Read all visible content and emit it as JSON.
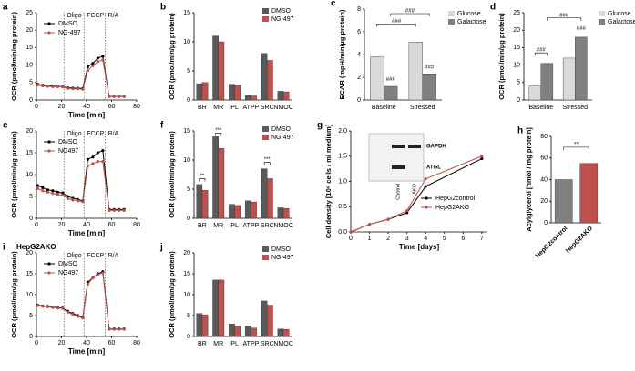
{
  "chart_data": [
    {
      "panel": "a",
      "type": "line",
      "xlabel": "Time [min]",
      "ylabel": "OCR (pmol/min/mg protein)",
      "x": [
        1,
        5,
        9,
        13,
        17,
        21,
        25,
        29,
        33,
        37,
        41,
        45,
        49,
        53,
        58,
        62,
        66,
        70
      ],
      "series": [
        {
          "name": "DMSO",
          "color": "#000000",
          "values": [
            4.5,
            4.2,
            4.0,
            4.0,
            3.9,
            3.8,
            3.5,
            3.4,
            3.4,
            3.3,
            9.5,
            10.5,
            12,
            12.5,
            1,
            1,
            1,
            1
          ]
        },
        {
          "name": "NG-497",
          "color": "#c0504d",
          "values": [
            4.3,
            4.0,
            3.9,
            3.8,
            3.8,
            3.7,
            3.3,
            3.2,
            3.2,
            3.1,
            8.5,
            9.8,
            11,
            11.5,
            1,
            1,
            1,
            1
          ]
        }
      ],
      "markers": [
        {
          "label": "Oligo",
          "x": 22
        },
        {
          "label": "FCCP",
          "x": 38
        },
        {
          "label": "R/A",
          "x": 55
        }
      ],
      "xlim": [
        0,
        80
      ],
      "xticks": [
        0,
        20,
        40,
        60,
        80
      ],
      "ylim": [
        0,
        25
      ],
      "yticks": [
        0,
        5,
        10,
        15,
        20,
        25
      ]
    },
    {
      "panel": "b",
      "type": "bar",
      "ylabel": "OCR (pmol/min/µg protein)",
      "categories": [
        "BR",
        "MR",
        "PL",
        "ATPP",
        "SRC",
        "NMOC"
      ],
      "series": [
        {
          "name": "DMSO",
          "color": "#595959",
          "values": [
            2.8,
            11,
            2.7,
            0.8,
            8,
            1.5
          ]
        },
        {
          "name": "NG-497",
          "color": "#c0504d",
          "values": [
            3,
            10,
            2.5,
            0.7,
            6.8,
            1.4
          ]
        }
      ],
      "ylim": [
        0,
        15
      ],
      "yticks": [
        0,
        5,
        10,
        15
      ]
    },
    {
      "panel": "c",
      "type": "bar",
      "ylabel": "ECAR (mpH/min/µg protein)",
      "categories": [
        "Baseline",
        "Stressed"
      ],
      "series": [
        {
          "name": "Glucose",
          "color": "#d9d9d9",
          "values": [
            3.8,
            5.1
          ]
        },
        {
          "name": "Galactose",
          "color": "#808080",
          "values": [
            1.2,
            2.3
          ]
        }
      ],
      "annotations": [
        "###",
        "###",
        "###",
        "###"
      ],
      "ylim": [
        0,
        8
      ],
      "yticks": [
        0,
        2,
        4,
        6,
        8
      ]
    },
    {
      "panel": "d",
      "type": "bar",
      "ylabel": "OCR (pmol/min/µg protein)",
      "categories": [
        "Baseline",
        "Stressed"
      ],
      "series": [
        {
          "name": "Glucose",
          "color": "#d9d9d9",
          "values": [
            4,
            12
          ]
        },
        {
          "name": "Galactose",
          "color": "#808080",
          "values": [
            10.5,
            18
          ]
        }
      ],
      "annotations": [
        "###",
        "###",
        "###"
      ],
      "ylim": [
        0,
        25
      ],
      "yticks": [
        0,
        5,
        10,
        15,
        20,
        25
      ]
    },
    {
      "panel": "e",
      "type": "line",
      "xlabel": "Time [min]",
      "ylabel": "OCR (pmol/min/µg protein)",
      "x": [
        1,
        5,
        9,
        13,
        17,
        21,
        25,
        29,
        33,
        37,
        41,
        45,
        49,
        53,
        58,
        62,
        66,
        70
      ],
      "series": [
        {
          "name": "DMSO",
          "color": "#000000",
          "values": [
            7.5,
            7,
            6.5,
            6.3,
            6,
            5.8,
            5,
            4.6,
            4.3,
            4,
            13.5,
            14,
            15,
            15.5,
            2,
            2,
            2,
            2
          ]
        },
        {
          "name": "NG497",
          "color": "#c0504d",
          "values": [
            6.8,
            6.3,
            6,
            5.7,
            5.5,
            5.3,
            4.5,
            4.2,
            4,
            3.8,
            12,
            12.5,
            13,
            13,
            1.8,
            1.8,
            1.8,
            1.8
          ]
        }
      ],
      "markers": [
        {
          "label": "Oligo",
          "x": 22
        },
        {
          "label": "FCCP",
          "x": 38
        },
        {
          "label": "R/A",
          "x": 55
        }
      ],
      "xlim": [
        0,
        80
      ],
      "xticks": [
        0,
        20,
        40,
        60,
        80
      ],
      "ylim": [
        0,
        20
      ],
      "yticks": [
        0,
        5,
        10,
        15,
        20
      ]
    },
    {
      "panel": "f",
      "type": "bar",
      "ylabel": "OCR (pmol/min/µg protein)",
      "categories": [
        "BR",
        "MR",
        "PL",
        "ATPP",
        "SRC",
        "NMOC"
      ],
      "series": [
        {
          "name": "DMSO",
          "color": "#595959",
          "values": [
            5.8,
            14,
            2.4,
            3,
            8.5,
            1.8
          ]
        },
        {
          "name": "NG-497",
          "color": "#c0504d",
          "values": [
            4.8,
            12,
            2.2,
            2.8,
            6.8,
            1.7
          ]
        }
      ],
      "annotations": [
        "**",
        "***",
        "***"
      ],
      "ylim": [
        0,
        15
      ],
      "yticks": [
        0,
        5,
        10,
        15
      ]
    },
    {
      "panel": "g",
      "type": "line",
      "xlabel": "Time [days]",
      "ylabel": "Cell density [10⁶ cells / ml medium]",
      "x": [
        0,
        1,
        2,
        3,
        4,
        7
      ],
      "series": [
        {
          "name": "HepG2control",
          "color": "#000000",
          "values": [
            0,
            0.15,
            0.25,
            0.38,
            0.9,
            1.45
          ]
        },
        {
          "name": "HepG2AKO",
          "color": "#c0504d",
          "values": [
            0,
            0.15,
            0.25,
            0.42,
            1.05,
            1.5
          ]
        }
      ],
      "blot": {
        "proteins": [
          "GAPDH",
          "ATGL"
        ],
        "lanes": [
          "Control",
          "AKO"
        ]
      },
      "xlim": [
        0,
        7.3
      ],
      "xticks": [
        0,
        1,
        2,
        3,
        4,
        5,
        6,
        7
      ],
      "ylim": [
        0,
        2
      ],
      "yticks": [
        {
          "value": 0,
          "label": "0.0"
        },
        0.5,
        {
          "value": 1,
          "label": "1.0"
        },
        1.5,
        {
          "value": 2,
          "label": "2.0"
        }
      ]
    },
    {
      "panel": "h",
      "type": "bar",
      "ylabel": "Acylglycerol [nmol / mg protein]",
      "categories": [
        "HepG2control",
        "HepG2AKO"
      ],
      "series": [
        {
          "colors": [
            "#808080",
            "#c0504d"
          ],
          "values": [
            40,
            55
          ]
        }
      ],
      "annotations": [
        "**"
      ],
      "ylim": [
        0,
        80
      ],
      "yticks": [
        0,
        20,
        40,
        60,
        80
      ]
    },
    {
      "panel": "i",
      "type": "line",
      "title": "HepG2AKO",
      "xlabel": "Time [min]",
      "ylabel": "OCR (pmol/min/µg protein)",
      "x": [
        1,
        5,
        9,
        13,
        17,
        21,
        25,
        29,
        33,
        37,
        41,
        45,
        49,
        53,
        58,
        62,
        66,
        70
      ],
      "series": [
        {
          "name": "DMSO",
          "color": "#000000",
          "values": [
            7.5,
            7.3,
            7.2,
            7,
            6.9,
            6.8,
            6,
            5.5,
            5,
            4.6,
            13,
            14,
            15,
            15.5,
            1.8,
            1.8,
            1.8,
            1.8
          ]
        },
        {
          "name": "NG497",
          "color": "#c0504d",
          "values": [
            7.4,
            7.2,
            7.1,
            6.9,
            6.8,
            6.7,
            5.8,
            5.3,
            4.8,
            4.4,
            12.5,
            14,
            14.8,
            15.2,
            1.7,
            1.7,
            1.7,
            1.7
          ]
        }
      ],
      "markers": [
        {
          "label": "Oligo",
          "x": 22
        },
        {
          "label": "FCCP",
          "x": 38
        },
        {
          "label": "R/A",
          "x": 55
        }
      ],
      "xlim": [
        0,
        80
      ],
      "xticks": [
        0,
        20,
        40,
        60,
        80
      ],
      "ylim": [
        0,
        20
      ],
      "yticks": [
        0,
        5,
        10,
        15,
        20
      ]
    },
    {
      "panel": "j",
      "type": "bar",
      "ylabel": "OCR (pmol/min/µg protein)",
      "categories": [
        "BR",
        "MR",
        "PL",
        "ATPP",
        "SRC",
        "NMOC"
      ],
      "series": [
        {
          "name": "DMSO",
          "color": "#595959",
          "values": [
            5.5,
            13.5,
            3,
            2.5,
            8.5,
            1.8
          ]
        },
        {
          "name": "NG-497",
          "color": "#c0504d",
          "values": [
            5.2,
            13.5,
            2.5,
            2,
            7.5,
            1.7
          ]
        }
      ],
      "ylim": [
        0,
        20
      ],
      "yticks": [
        0,
        5,
        10,
        15,
        20
      ]
    }
  ]
}
